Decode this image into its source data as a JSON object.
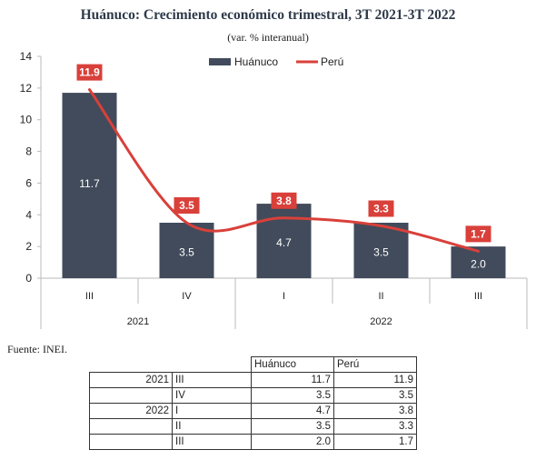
{
  "chart_data": {
    "type": "bar",
    "title": "Huánuco: Crecimiento económico trimestral, 3T 2021-3T 2022",
    "subtitle": "(var. % interanual)",
    "categories": [
      "III",
      "IV",
      "I",
      "II",
      "III"
    ],
    "groups": [
      {
        "label": "2021",
        "span": 2
      },
      {
        "label": "2022",
        "span": 3
      }
    ],
    "series": [
      {
        "name": "Huánuco",
        "kind": "bar",
        "color": "#414b5b",
        "values": [
          11.7,
          3.5,
          4.7,
          3.5,
          2.0
        ],
        "labels": [
          "11.7",
          "3.5",
          "4.7",
          "3.5",
          "2.0"
        ]
      },
      {
        "name": "Perú",
        "kind": "line",
        "color": "#d9403a",
        "values": [
          11.9,
          3.5,
          3.8,
          3.3,
          1.7
        ],
        "labels": [
          "11.9",
          "3.5",
          "3.8",
          "3.3",
          "1.7"
        ]
      }
    ],
    "ylim": [
      0,
      14
    ],
    "yticks": [
      "0",
      "2",
      "4",
      "6",
      "8",
      "10",
      "12",
      "14"
    ],
    "legend_position": "top-center",
    "grid": false
  },
  "source": "Fuente: INEI.",
  "table": {
    "headers": [
      "",
      "",
      "Huánuco",
      "Perú"
    ],
    "rows": [
      {
        "year": "2021",
        "quarter": "III",
        "huanuco": "11.7",
        "peru": "11.9"
      },
      {
        "year": "",
        "quarter": "IV",
        "huanuco": "3.5",
        "peru": "3.5"
      },
      {
        "year": "2022",
        "quarter": "I",
        "huanuco": "4.7",
        "peru": "3.8"
      },
      {
        "year": "",
        "quarter": "II",
        "huanuco": "3.5",
        "peru": "3.3"
      },
      {
        "year": "",
        "quarter": "III",
        "huanuco": "2.0",
        "peru": "1.7"
      }
    ]
  }
}
